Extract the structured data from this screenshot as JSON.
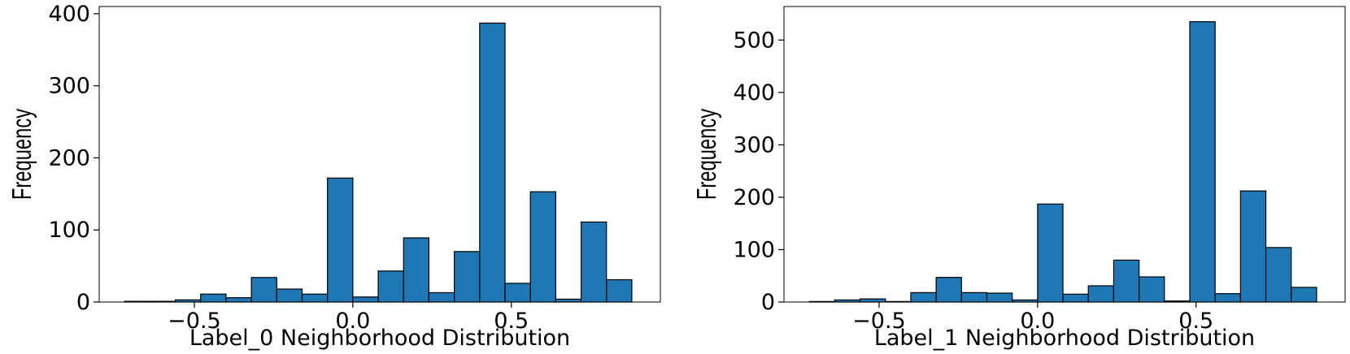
{
  "chart_data": [
    {
      "type": "bar",
      "xlabel": "Label_0 Neighborhood Distribution",
      "ylabel": "Frequency",
      "xlim": [
        -0.8,
        0.97
      ],
      "ylim": [
        0,
        410
      ],
      "xticks": [
        -0.5,
        0.0,
        0.5
      ],
      "xtick_labels": [
        "−0.5",
        "0.0",
        "0.5"
      ],
      "yticks": [
        0,
        100,
        200,
        300,
        400
      ],
      "ytick_labels": [
        "0",
        "100",
        "200",
        "300",
        "400"
      ],
      "bin_start": -0.72,
      "bin_width": 0.08,
      "values": [
        1,
        1,
        3,
        11,
        6,
        34,
        18,
        11,
        172,
        7,
        43,
        89,
        13,
        70,
        387,
        26,
        153,
        4,
        111,
        31
      ],
      "bar_color": "#1f77b4",
      "grid": false
    },
    {
      "type": "bar",
      "xlabel": "Label_1 Neighborhood Distribution",
      "ylabel": "Frequency",
      "xlim": [
        -0.8,
        0.97
      ],
      "ylim": [
        0,
        564
      ],
      "xticks": [
        -0.5,
        0.0,
        0.5
      ],
      "xtick_labels": [
        "−0.5",
        "0.0",
        "0.5"
      ],
      "yticks": [
        0,
        100,
        200,
        300,
        400,
        500
      ],
      "ytick_labels": [
        "0",
        "100",
        "200",
        "300",
        "400",
        "500"
      ],
      "bin_start": -0.72,
      "bin_width": 0.08,
      "values": [
        1,
        4,
        6,
        1,
        18,
        47,
        18,
        17,
        4,
        187,
        15,
        31,
        80,
        48,
        2,
        535,
        16,
        212,
        104,
        28
      ],
      "bar_color": "#1f77b4",
      "grid": false
    }
  ]
}
